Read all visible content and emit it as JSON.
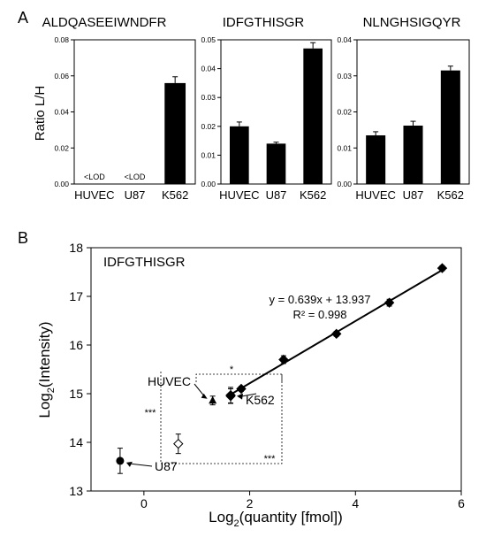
{
  "panel_labels": {
    "a": "A",
    "b": "B"
  },
  "chart_data": [
    {
      "type": "bar",
      "panel": "A",
      "title": "ALDQASEEIWNDFR",
      "ylabel": "Ratio L/H",
      "categories": [
        "HUVEC",
        "U87",
        "K562"
      ],
      "values": [
        null,
        null,
        0.056
      ],
      "errors": [
        null,
        null,
        0.0035
      ],
      "bar_labels": [
        "<LOD",
        "<LOD",
        ""
      ],
      "ylim": [
        0,
        0.08
      ],
      "yticks": [
        "0.00",
        "0.02",
        "0.04",
        "0.06",
        "0.08"
      ],
      "bar_color": "#000000"
    },
    {
      "type": "bar",
      "panel": "A",
      "title": "IDFGTHISGR",
      "ylabel": "",
      "categories": [
        "HUVEC",
        "U87",
        "K562"
      ],
      "values": [
        0.02,
        0.014,
        0.047
      ],
      "errors": [
        0.0015,
        0.0005,
        0.002
      ],
      "bar_labels": [
        "",
        "",
        ""
      ],
      "ylim": [
        0,
        0.05
      ],
      "yticks": [
        "0.00",
        "0.01",
        "0.02",
        "0.03",
        "0.04",
        "0.05"
      ],
      "bar_color": "#000000"
    },
    {
      "type": "bar",
      "panel": "A",
      "title": "NLNGHSIGQYR",
      "ylabel": "",
      "categories": [
        "HUVEC",
        "U87",
        "K562"
      ],
      "values": [
        0.0135,
        0.0162,
        0.0315
      ],
      "errors": [
        0.001,
        0.0012,
        0.0012
      ],
      "bar_labels": [
        "",
        "",
        ""
      ],
      "ylim": [
        0,
        0.04
      ],
      "yticks": [
        "0.00",
        "0.01",
        "0.02",
        "0.03",
        "0.04"
      ],
      "bar_color": "#000000"
    },
    {
      "type": "scatter",
      "panel": "B",
      "title": "IDFGTHISGR",
      "xlabel": "Log2(quantity [fmol])",
      "ylabel": "Log2(Intensity)",
      "xlim": [
        -1,
        6
      ],
      "ylim": [
        13,
        18
      ],
      "xticks": [
        0,
        2,
        4,
        6
      ],
      "yticks": [
        13,
        14,
        15,
        16,
        17,
        18
      ],
      "calibration": {
        "x": [
          1.64,
          1.84,
          2.64,
          3.64,
          4.64,
          5.64
        ],
        "y": [
          14.95,
          15.1,
          15.7,
          16.23,
          16.87,
          17.58
        ],
        "err": [
          0.15,
          0.05,
          0.08,
          0.05,
          0.07,
          0.05
        ]
      },
      "fit": {
        "slope": 0.639,
        "intercept": 13.937,
        "x_range": [
          1.64,
          5.64
        ]
      },
      "equation": "y = 0.639x + 13.937",
      "r2": "R² = 0.998",
      "samples": [
        {
          "name": "HUVEC",
          "x": 1.3,
          "y": 14.86,
          "err": 0.09,
          "marker": "triangle"
        },
        {
          "name": "K562",
          "x": 1.64,
          "y": 14.97,
          "err": 0.16,
          "marker": "diamond"
        },
        {
          "name": "U87",
          "x": -0.45,
          "y": 13.62,
          "err": 0.26,
          "marker": "circle"
        },
        {
          "name": "",
          "x": 0.65,
          "y": 13.97,
          "err": 0.2,
          "marker": "diamond-open"
        }
      ],
      "significance": [
        "*",
        "***",
        "***"
      ]
    }
  ]
}
